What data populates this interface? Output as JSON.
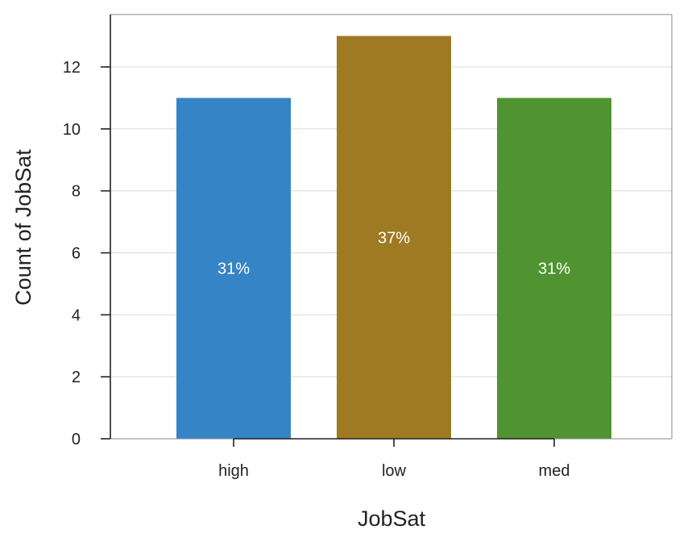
{
  "chart_data": {
    "type": "bar",
    "categories": [
      "high",
      "low",
      "med"
    ],
    "values": [
      11,
      13,
      11
    ],
    "bar_labels": [
      "31%",
      "37%",
      "31%"
    ],
    "bar_colors": [
      "#3585c6",
      "#a07a22",
      "#4f9431"
    ],
    "xlabel": "JobSat",
    "ylabel": "Count of JobSat",
    "ylim": [
      0,
      13.5
    ],
    "yticks": [
      0,
      2,
      4,
      6,
      8,
      10,
      12
    ],
    "grid": "horizontal",
    "colors": {
      "grid": "#d9dcc9",
      "axis": "#222222",
      "frame": "#888888",
      "bar_label": "#ffffff"
    }
  }
}
